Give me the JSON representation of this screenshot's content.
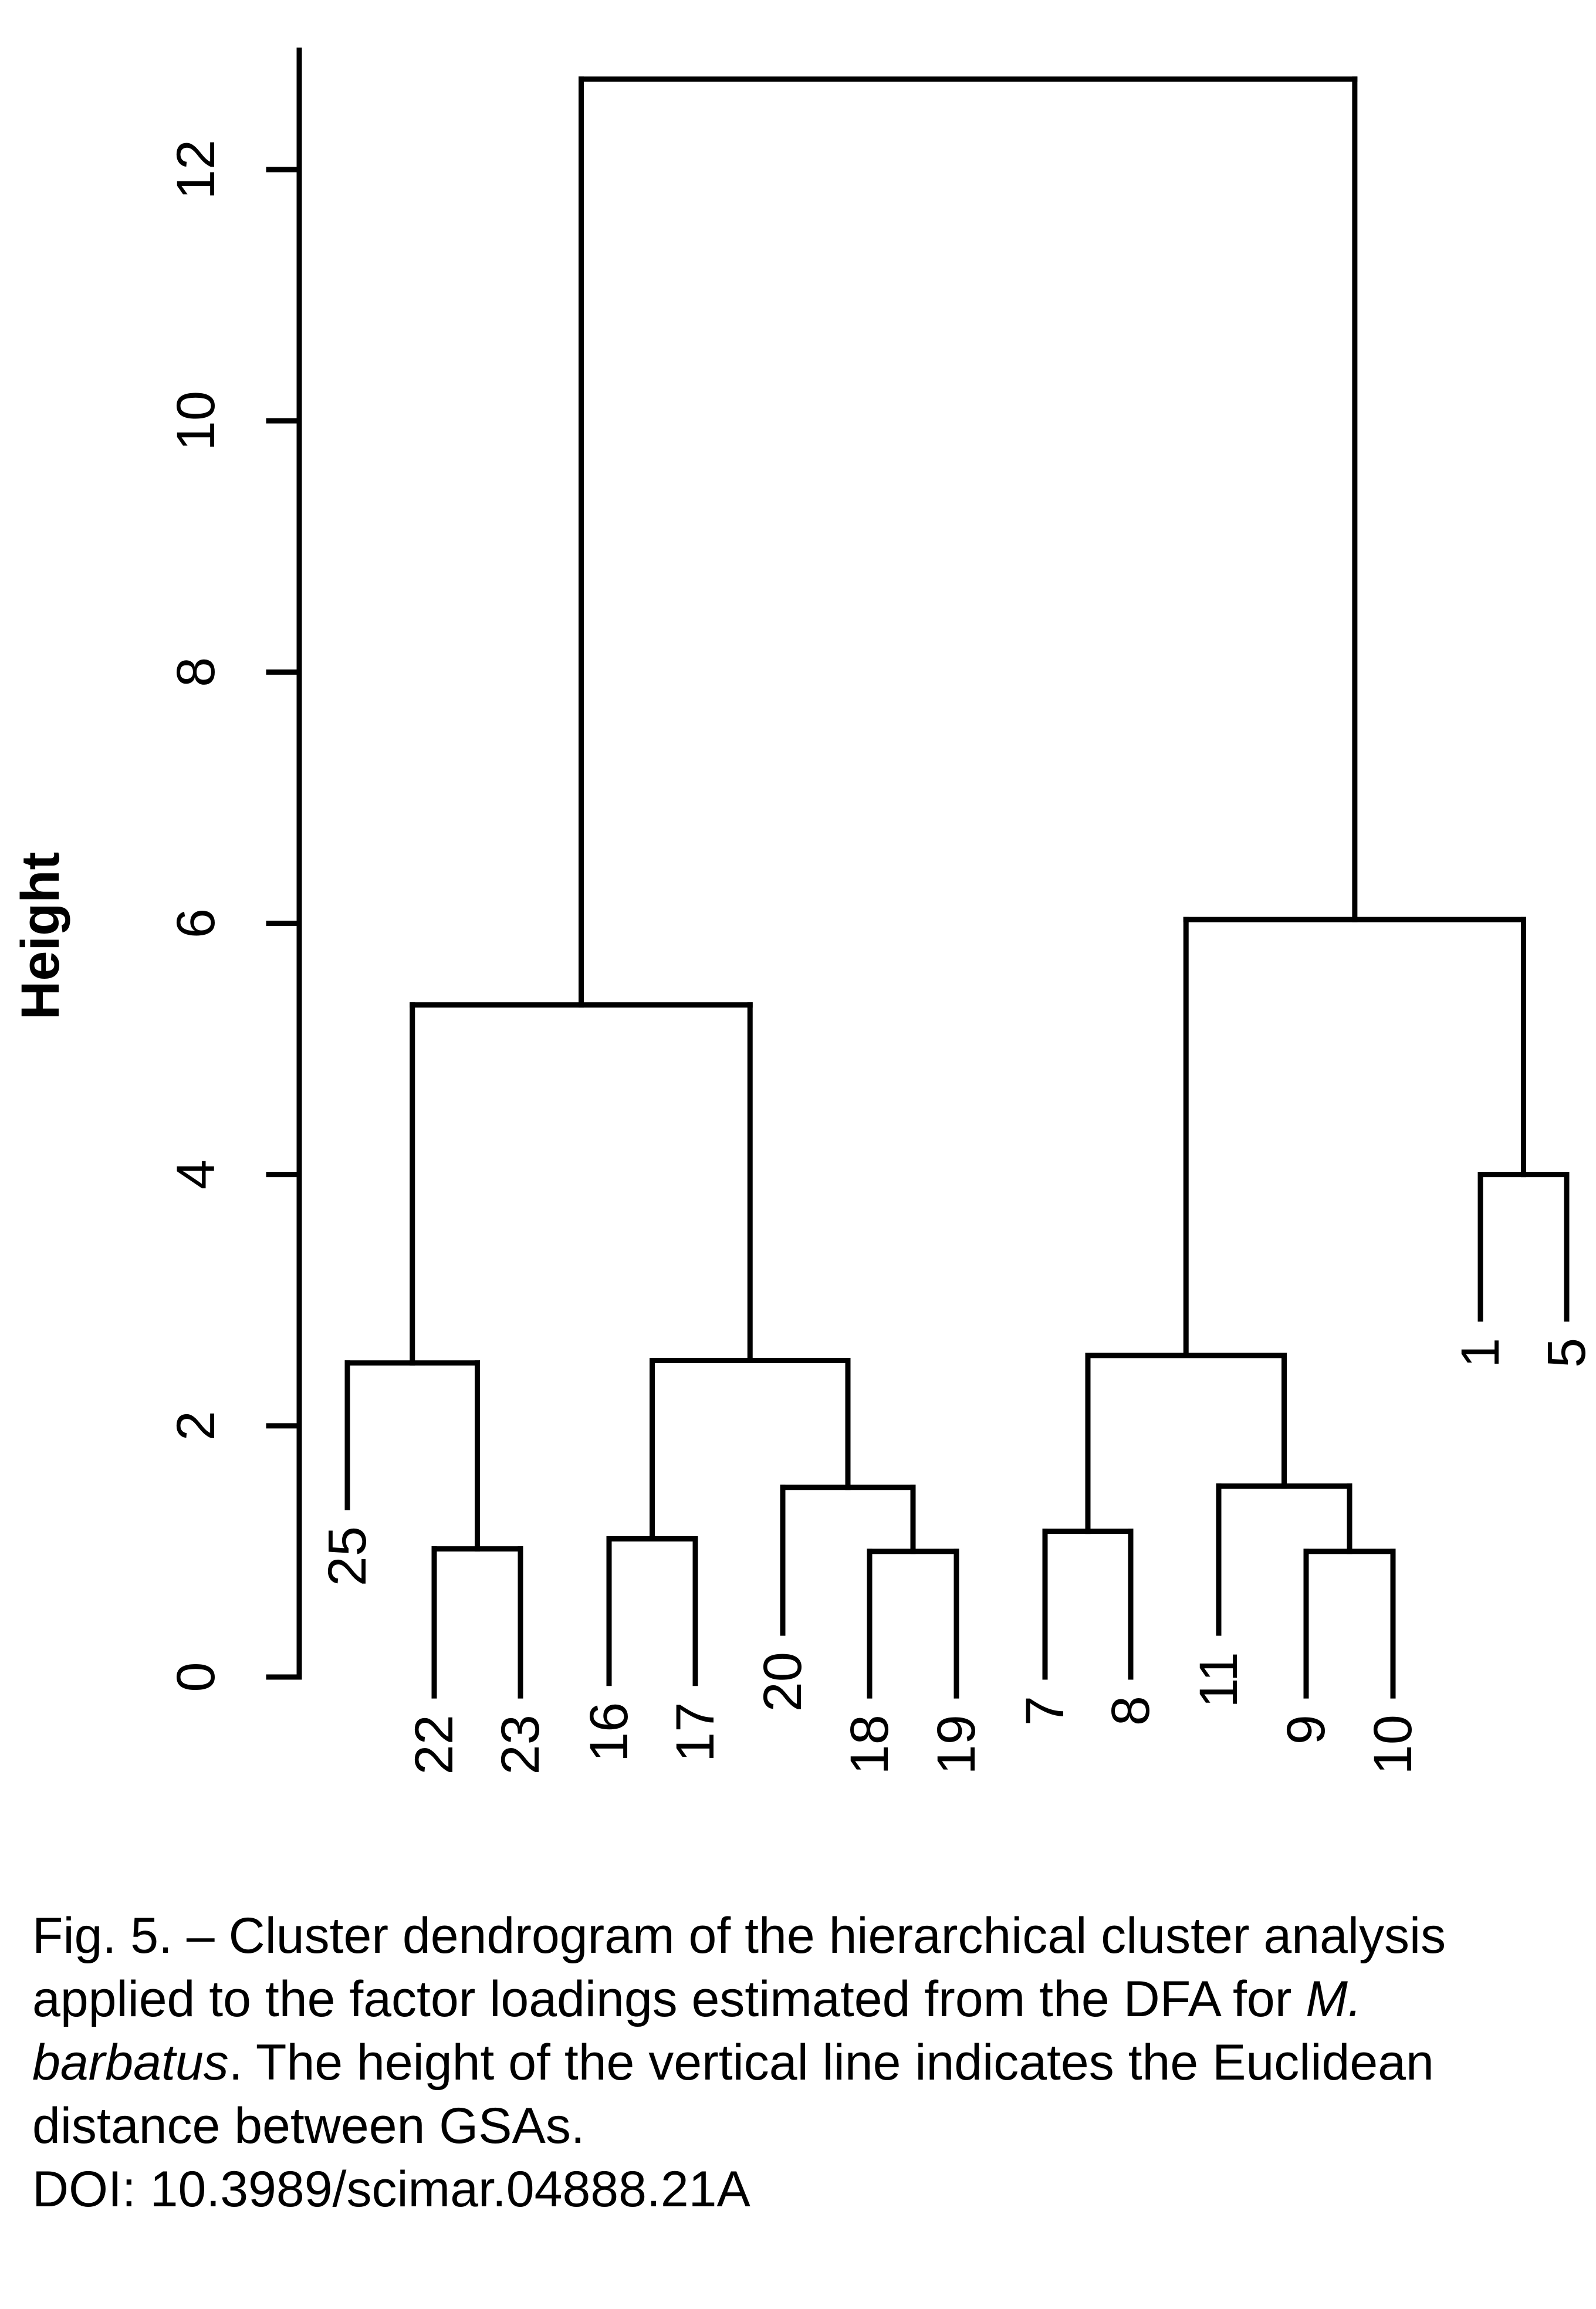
{
  "chart_data": {
    "type": "dendrogram",
    "ylabel": "Height",
    "ylim": [
      0,
      13
    ],
    "yticks": [
      0,
      2,
      4,
      6,
      8,
      10,
      12
    ],
    "leaves": [
      "25",
      "22",
      "23",
      "16",
      "17",
      "20",
      "18",
      "19",
      "7",
      "8",
      "11",
      "9",
      "10",
      "1",
      "5"
    ],
    "leaf_heights": {
      "25": 1.35,
      "22": -0.15,
      "23": -0.15,
      "16": -0.05,
      "17": -0.05,
      "20": 0.35,
      "18": -0.15,
      "19": -0.15,
      "7": 0.0,
      "8": 0.0,
      "11": 0.35,
      "9": -0.15,
      "10": -0.15,
      "1": 2.85,
      "5": 2.85
    },
    "merges": [
      {
        "left": "9",
        "right": "10",
        "height": 1.0
      },
      {
        "left": "18",
        "right": "19",
        "height": 1.0
      },
      {
        "left": "22",
        "right": "23",
        "height": 1.02
      },
      {
        "left": "16",
        "right": "17",
        "height": 1.1
      },
      {
        "left": "7",
        "right": "8",
        "height": 1.16
      },
      {
        "left": "11",
        "right": "9+10",
        "height": 1.52
      },
      {
        "left": "20",
        "right": "18+19",
        "height": 1.51
      },
      {
        "left": "25",
        "right": "22+23",
        "height": 2.5
      },
      {
        "left": "16+17",
        "right": "20+18+19",
        "height": 2.52
      },
      {
        "left": "7+8",
        "right": "11+9+10",
        "height": 2.56
      },
      {
        "left": "1",
        "right": "5",
        "height": 4.0
      },
      {
        "left": "25..23",
        "right": "16..19",
        "height": 5.35
      },
      {
        "left": "7..10",
        "right": "1+5",
        "height": 6.03
      },
      {
        "left": "left-cluster",
        "right": "right-cluster",
        "height": 12.72
      }
    ]
  },
  "caption": {
    "prefix": "Fig. 5. – Cluster dendrogram of the hierarchical cluster analysis applied to the factor loadings estimated from the DFA for ",
    "species": "M. barbatus",
    "suffix": ". The height of the vertical line indicates the Euclidean distance between GSAs.",
    "doi": "DOI: 10.3989/scimar.04888.21A"
  }
}
